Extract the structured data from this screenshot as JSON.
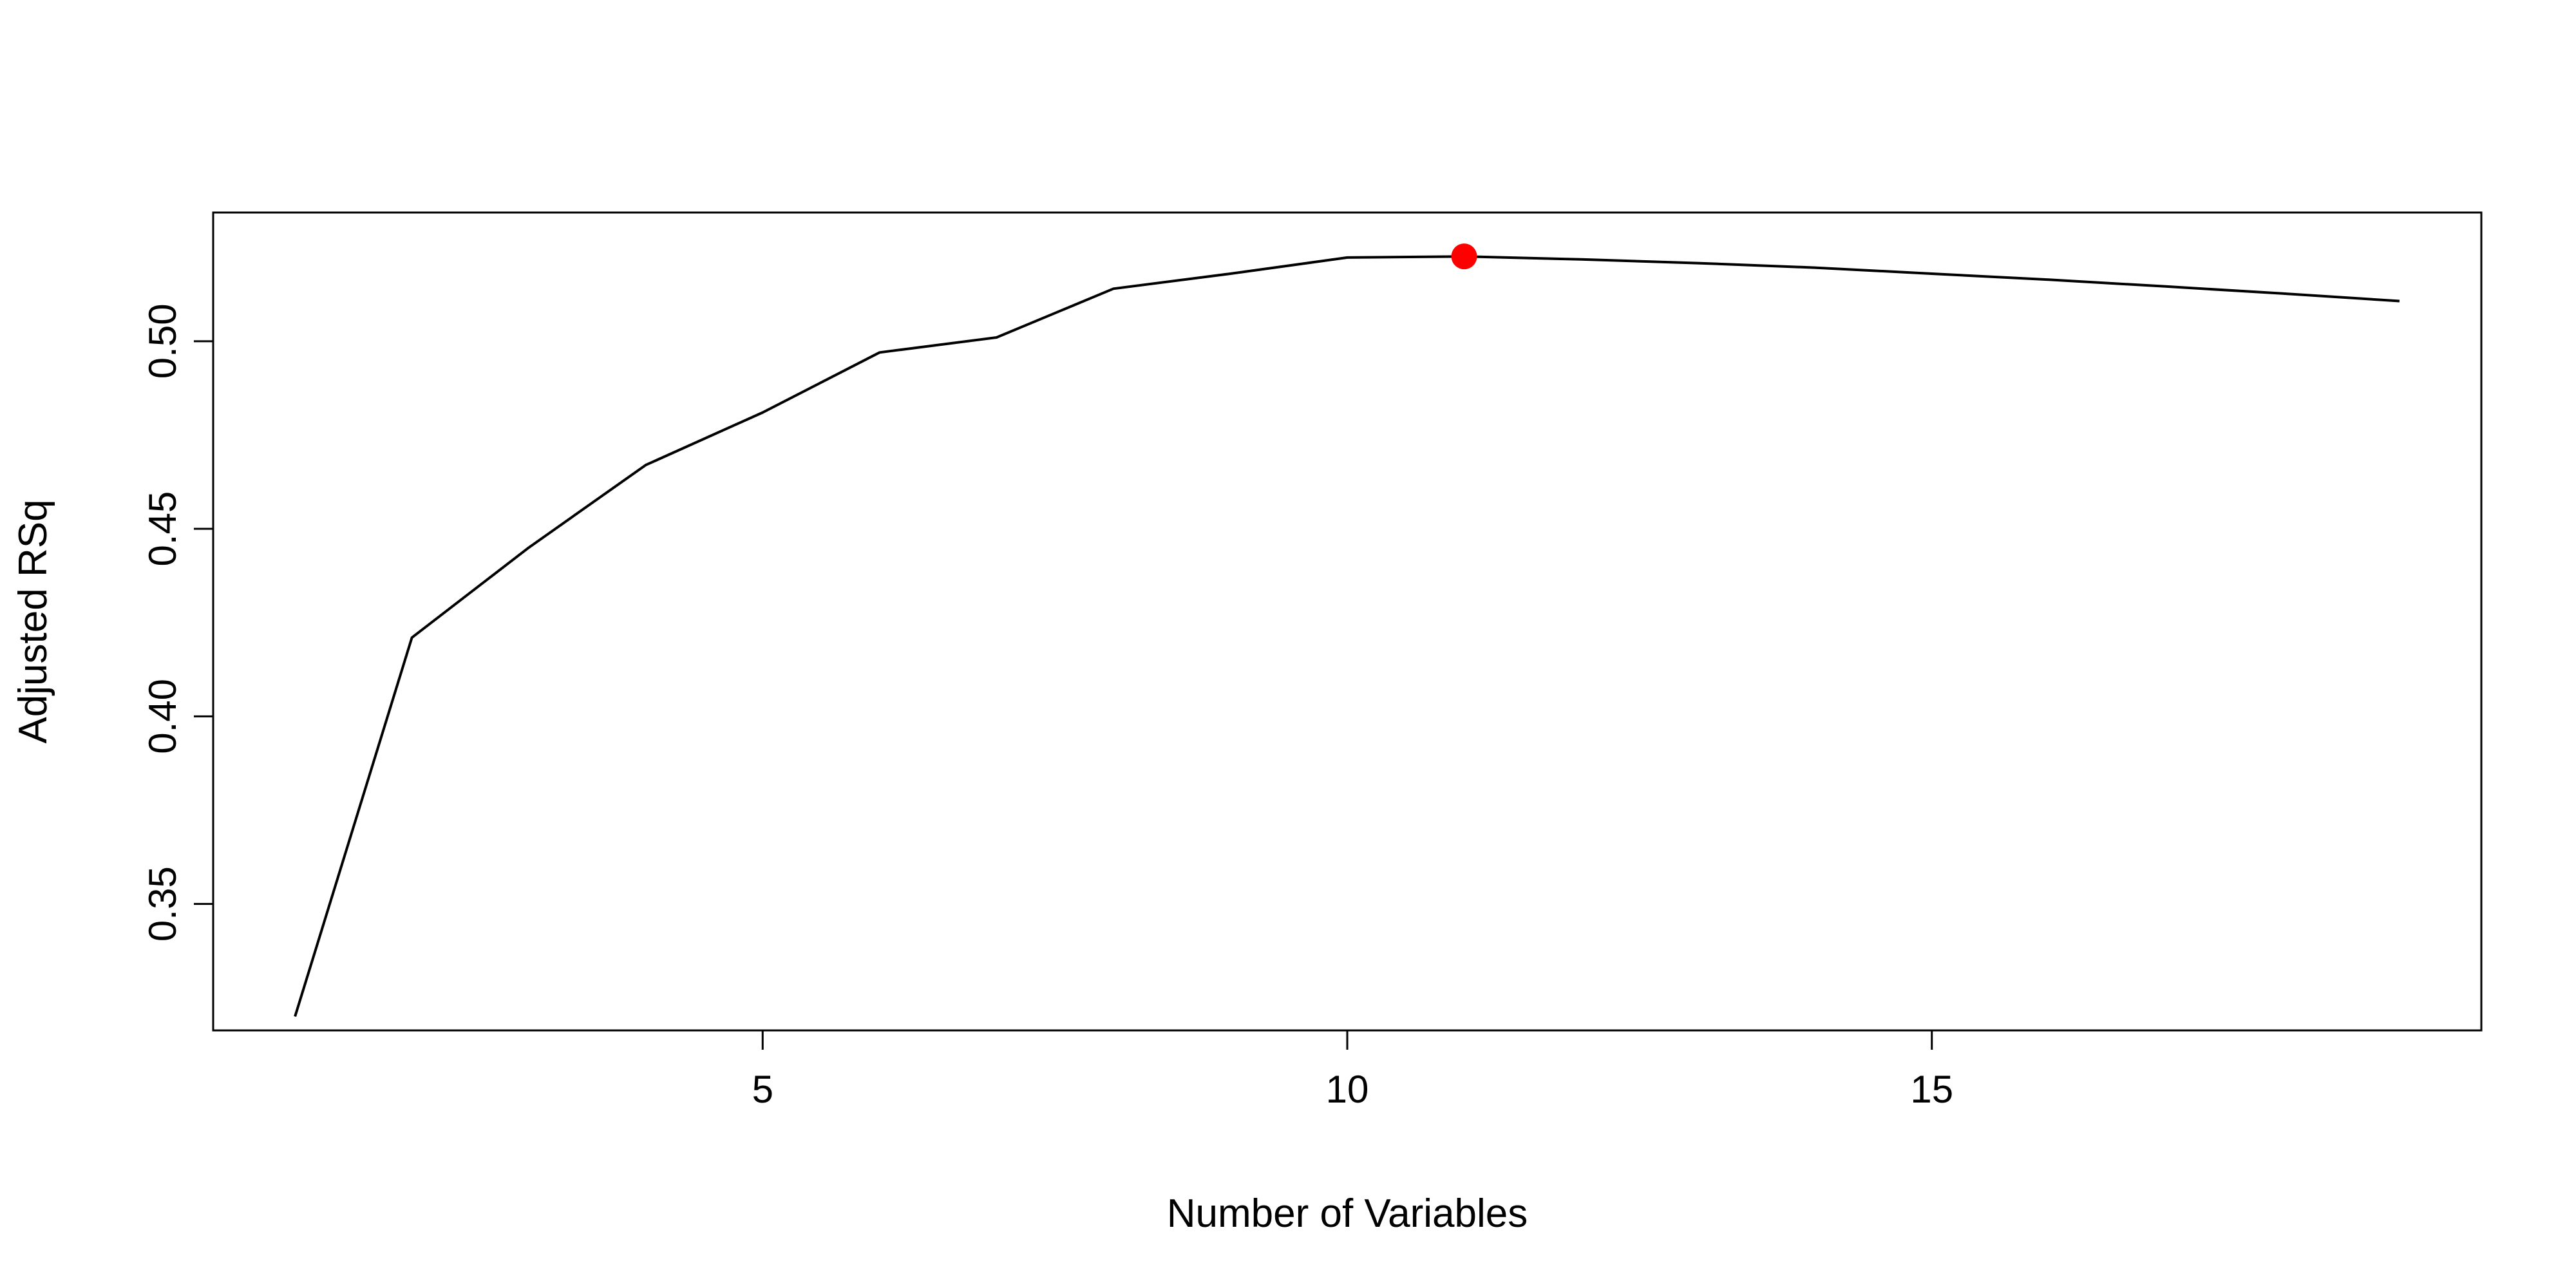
{
  "chart_data": {
    "type": "line",
    "title": "",
    "xlabel": "Number of Variables",
    "ylabel": "Adjusted RSq",
    "x": [
      1,
      2,
      3,
      4,
      5,
      6,
      7,
      8,
      9,
      10,
      11,
      12,
      13,
      14,
      15,
      16,
      17,
      18,
      19
    ],
    "y": [
      0.32,
      0.421,
      0.445,
      0.467,
      0.481,
      0.497,
      0.501,
      0.514,
      0.518,
      0.5223,
      0.5226,
      0.5218,
      0.5208,
      0.5196,
      0.518,
      0.5164,
      0.5146,
      0.5127,
      0.5107
    ],
    "highlight": {
      "x": 11,
      "y": 0.5226,
      "color": "#ff0000"
    },
    "xlim": [
      0.3,
      19.7
    ],
    "ylim": [
      0.3163,
      0.5343
    ],
    "xticks": [
      5,
      10,
      15
    ],
    "yticks": [
      0.35,
      0.4,
      0.45,
      0.5
    ],
    "xtick_labels": [
      "5",
      "10",
      "15"
    ],
    "ytick_labels": [
      "0.35",
      "0.40",
      "0.45",
      "0.50"
    ],
    "grid": false,
    "line_color": "#000000"
  }
}
